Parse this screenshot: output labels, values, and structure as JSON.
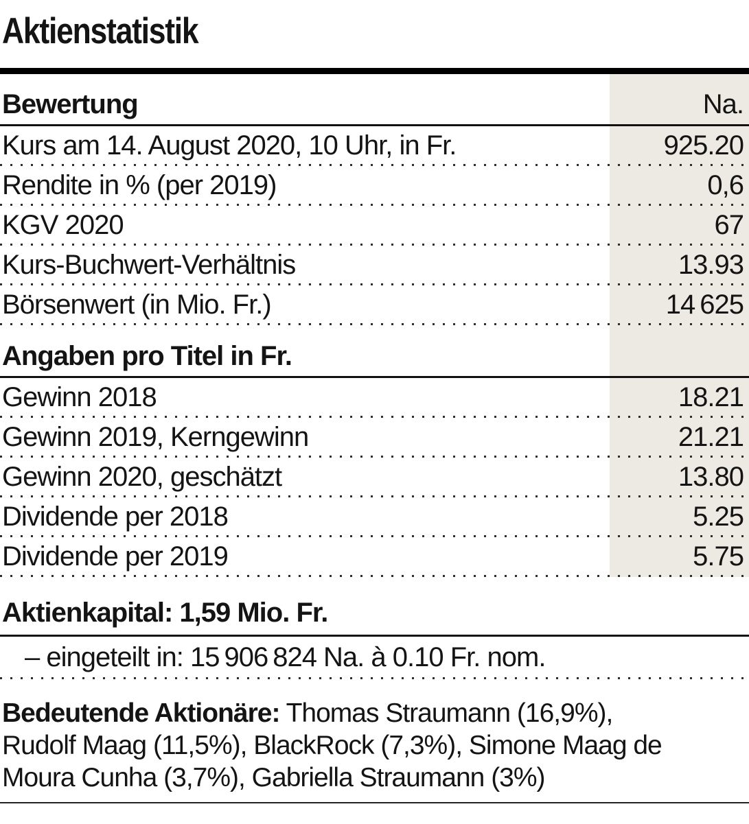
{
  "page": {
    "title": "Aktienstatistik"
  },
  "colors": {
    "highlight": "#ECEAE2",
    "text": "#141414"
  },
  "table": {
    "sections": [
      {
        "header": "Bewertung",
        "value_header": "Na.",
        "rows": [
          {
            "label": "Kurs am 14. August 2020, 10 Uhr, in Fr.",
            "value": "925.20"
          },
          {
            "label": "Rendite in % (per 2019)",
            "value": "0,6"
          },
          {
            "label": "KGV 2020",
            "value": "67"
          },
          {
            "label": "Kurs-Buchwert-Verhältnis",
            "value": "13.93"
          },
          {
            "label": "Börsenwert (in Mio. Fr.)",
            "value": "14 625"
          }
        ]
      },
      {
        "header": "Angaben pro Titel in Fr.",
        "rows": [
          {
            "label": "Gewinn 2018",
            "value": "18.21"
          },
          {
            "label": "Gewinn 2019, Kerngewinn",
            "value": "21.21"
          },
          {
            "label": "Gewinn 2020, geschätzt",
            "value": "13.80"
          },
          {
            "label": "Dividende per 2018",
            "value": "5.25"
          },
          {
            "label": "Dividende per 2019",
            "value": "5.75"
          }
        ]
      }
    ]
  },
  "capital": {
    "heading": "Aktienkapital: 1,59 Mio. Fr.",
    "detail": "– eingeteilt in: 15 906 824 Na. à 0.10 Fr. nom."
  },
  "shareholders": {
    "label": "Bedeutende Aktionäre:",
    "line1_rest": " Thomas Straumann (16,9%),",
    "line2": "Rudolf Maag (11,5%), BlackRock (7,3%), Simone Maag de",
    "line3": "Moura Cunha (3,7%), Gabriella Straumann (3%)"
  }
}
